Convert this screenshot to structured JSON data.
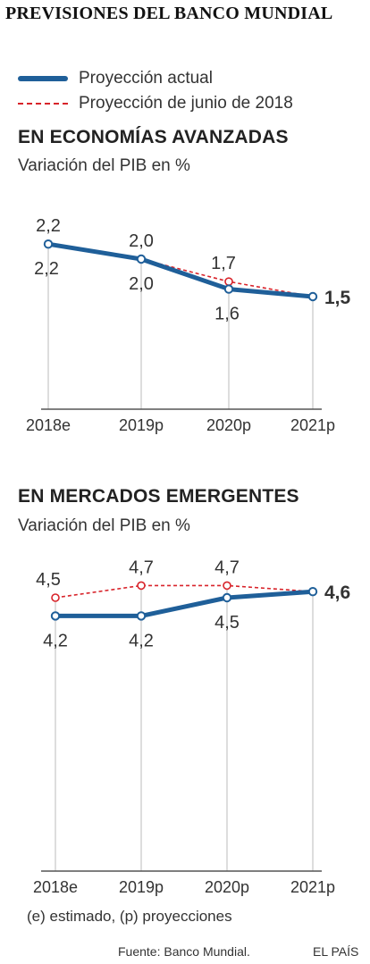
{
  "title": "PREVISIONES DEL BANCO MUNDIAL",
  "legend": {
    "current": "Proyección actual",
    "june": "Proyección de junio  de 2018"
  },
  "footnote": "(e) estimado, (p) proyecciones",
  "source": "Fuente: Banco Mundial.",
  "brand": "EL PAÍS",
  "colors": {
    "current": "#1f5f99",
    "june": "#d8232a",
    "axis": "#555555",
    "gridline": "#bbbbbb"
  },
  "chart_data": [
    {
      "type": "line",
      "title": "EN ECONOMÍAS AVANZADAS",
      "subtitle": "Variación del PIB en %",
      "categories": [
        "2018e",
        "2019p",
        "2020p",
        "2021p"
      ],
      "ylim": [
        0,
        2.5
      ],
      "grid": false,
      "legend_position": "top-left",
      "series": [
        {
          "name": "Proyección actual",
          "values": [
            2.2,
            2.0,
            1.6,
            1.5
          ],
          "labels": [
            "2,2",
            "2,0",
            "1,6",
            "1,5"
          ]
        },
        {
          "name": "Proyección de junio  de 2018",
          "values": [
            2.2,
            2.0,
            1.7,
            1.5
          ],
          "labels": [
            "2,2",
            "2,0",
            "1,7",
            ""
          ]
        }
      ]
    },
    {
      "type": "line",
      "title": "EN MERCADOS EMERGENTES",
      "subtitle": "Variación del PIB en %",
      "categories": [
        "2018e",
        "2019p",
        "2020p",
        "2021p"
      ],
      "ylim": [
        0,
        5.0
      ],
      "grid": false,
      "legend_position": "top-left",
      "series": [
        {
          "name": "Proyección actual",
          "values": [
            4.2,
            4.2,
            4.5,
            4.6
          ],
          "labels": [
            "4,2",
            "4,2",
            "4,5",
            "4,6"
          ]
        },
        {
          "name": "Proyección de junio  de 2018",
          "values": [
            4.5,
            4.7,
            4.7,
            4.6
          ],
          "labels": [
            "4,5",
            "4,7",
            "4,7",
            ""
          ]
        }
      ]
    }
  ]
}
